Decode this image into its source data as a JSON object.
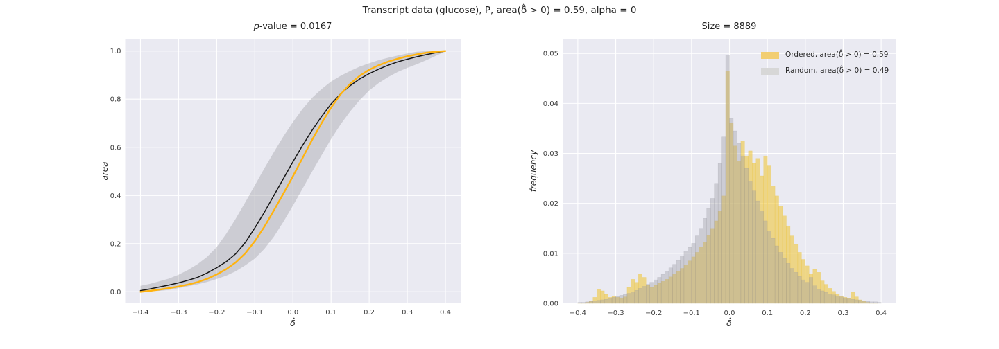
{
  "figure": {
    "suptitle": "Transcript data (glucose), P, area(δ̂ > 0) = 0.59, alpha = 0",
    "background": "#ffffff",
    "axes_bg": "#eaeaf2",
    "grid_color": "#ffffff",
    "tick_color": "#3d3d3d",
    "text_color": "#262626"
  },
  "chart_data": [
    {
      "type": "line",
      "title": "p-value = 0.0167",
      "title_parts": {
        "italic": "p",
        "rest": "-value = 0.0167"
      },
      "xlabel": "δ̂",
      "ylabel": "area",
      "xlim": [
        -0.44,
        0.44
      ],
      "ylim": [
        -0.045,
        1.048
      ],
      "grid": true,
      "xticks": {
        "values": [
          -0.4,
          -0.3,
          -0.2,
          -0.1,
          0,
          0.1,
          0.2,
          0.3,
          0.4
        ],
        "labels": [
          "−0.4",
          "−0.3",
          "−0.2",
          "−0.1",
          "0.0",
          "0.1",
          "0.2",
          "0.3",
          "0.4"
        ]
      },
      "yticks": {
        "values": [
          0,
          0.2,
          0.4,
          0.6,
          0.8,
          1
        ],
        "labels": [
          "0.0",
          "0.2",
          "0.4",
          "0.6",
          "0.8",
          "1.0"
        ]
      },
      "x": [
        -0.4,
        -0.375,
        -0.35,
        -0.325,
        -0.3,
        -0.275,
        -0.25,
        -0.225,
        -0.2,
        -0.175,
        -0.15,
        -0.125,
        -0.1,
        -0.075,
        -0.05,
        -0.025,
        0,
        0.025,
        0.05,
        0.075,
        0.1,
        0.125,
        0.15,
        0.175,
        0.2,
        0.225,
        0.25,
        0.275,
        0.3,
        0.325,
        0.35,
        0.375,
        0.4
      ],
      "band": {
        "color": "#96969b",
        "opacity": 0.35,
        "upper": [
          0.025,
          0.033,
          0.044,
          0.055,
          0.071,
          0.091,
          0.115,
          0.145,
          0.186,
          0.241,
          0.304,
          0.372,
          0.442,
          0.512,
          0.58,
          0.645,
          0.705,
          0.759,
          0.805,
          0.842,
          0.873,
          0.897,
          0.917,
          0.935,
          0.949,
          0.962,
          0.972,
          0.981,
          0.99,
          0.997,
          1.0,
          1.0,
          1.0
        ],
        "lower": [
          0.001,
          0.002,
          0.004,
          0.008,
          0.015,
          0.023,
          0.031,
          0.041,
          0.053,
          0.067,
          0.085,
          0.11,
          0.138,
          0.178,
          0.229,
          0.291,
          0.358,
          0.428,
          0.498,
          0.567,
          0.634,
          0.695,
          0.749,
          0.796,
          0.836,
          0.867,
          0.892,
          0.913,
          0.93,
          0.945,
          0.962,
          0.98,
          0.998
        ]
      },
      "series": [
        {
          "id": "random_mean",
          "color": "#151515",
          "linewidth": 1.5,
          "y": [
            0.005,
            0.012,
            0.02,
            0.028,
            0.037,
            0.048,
            0.06,
            0.078,
            0.1,
            0.125,
            0.158,
            0.205,
            0.265,
            0.33,
            0.4,
            0.47,
            0.54,
            0.607,
            0.67,
            0.728,
            0.78,
            0.822,
            0.856,
            0.884,
            0.906,
            0.925,
            0.941,
            0.955,
            0.966,
            0.976,
            0.985,
            0.993,
            1.0
          ]
        },
        {
          "id": "ordered",
          "color": "#ffb30f",
          "linewidth": 2.4,
          "y": [
            0.0,
            0.004,
            0.009,
            0.015,
            0.022,
            0.03,
            0.04,
            0.054,
            0.072,
            0.094,
            0.122,
            0.16,
            0.21,
            0.27,
            0.338,
            0.408,
            0.48,
            0.555,
            0.63,
            0.7,
            0.765,
            0.82,
            0.864,
            0.897,
            0.922,
            0.941,
            0.956,
            0.968,
            0.978,
            0.986,
            0.993,
            0.997,
            1.0
          ]
        }
      ]
    },
    {
      "type": "bar",
      "title": "Size = 8889",
      "xlabel": "δ̂",
      "ylabel": "frequency",
      "xlim": [
        -0.44,
        0.44
      ],
      "ylim": [
        0,
        0.0528
      ],
      "grid": true,
      "xticks": {
        "values": [
          -0.4,
          -0.3,
          -0.2,
          -0.1,
          0,
          0.1,
          0.2,
          0.3,
          0.4
        ],
        "labels": [
          "−0.4",
          "−0.3",
          "−0.2",
          "−0.1",
          "0.0",
          "0.1",
          "0.2",
          "0.3",
          "0.4"
        ]
      },
      "yticks": {
        "values": [
          0,
          0.01,
          0.02,
          0.03,
          0.04,
          0.05
        ],
        "labels": [
          "0.00",
          "0.01",
          "0.02",
          "0.03",
          "0.04",
          "0.05"
        ]
      },
      "bin_start": -0.4,
      "bin_width": 0.01,
      "n_bins": 80,
      "legend_position": "upper right",
      "series": [
        {
          "name": "Ordered, area(δ̂ > 0) = 0.59",
          "color": "#eec22d",
          "opacity": 0.55,
          "swatch": "#f2ce72",
          "values": [
            0.0001,
            0.0001,
            0.0002,
            0.0005,
            0.0012,
            0.0028,
            0.0025,
            0.0018,
            0.0012,
            0.0015,
            0.0012,
            0.001,
            0.0013,
            0.0032,
            0.0048,
            0.0042,
            0.0058,
            0.0052,
            0.0036,
            0.0032,
            0.0036,
            0.004,
            0.0044,
            0.0048,
            0.0053,
            0.0058,
            0.0064,
            0.007,
            0.0077,
            0.0085,
            0.0093,
            0.0102,
            0.0112,
            0.0123,
            0.0136,
            0.015,
            0.0165,
            0.0185,
            0.0215,
            0.0465,
            0.036,
            0.0315,
            0.0285,
            0.0325,
            0.0295,
            0.0305,
            0.028,
            0.029,
            0.0255,
            0.0295,
            0.0275,
            0.0235,
            0.0215,
            0.0195,
            0.0175,
            0.0155,
            0.0135,
            0.0118,
            0.0102,
            0.0088,
            0.0075,
            0.0058,
            0.0068,
            0.0062,
            0.0045,
            0.0038,
            0.003,
            0.0024,
            0.0019,
            0.0015,
            0.0012,
            0.001,
            0.0022,
            0.0013,
            0.0007,
            0.0004,
            0.0002,
            0.0001,
            0.0001,
            0.0
          ]
        },
        {
          "name": "Random, area(δ̂ > 0) = 0.49",
          "color": "#9a9aa2",
          "opacity": 0.38,
          "swatch": "#d7d7d7",
          "values": [
            0.0002,
            0.0002,
            0.0003,
            0.0004,
            0.0005,
            0.0006,
            0.0007,
            0.0008,
            0.001,
            0.0012,
            0.0014,
            0.0016,
            0.0018,
            0.002,
            0.0023,
            0.0026,
            0.003,
            0.0034,
            0.0038,
            0.0042,
            0.0047,
            0.0052,
            0.0058,
            0.0064,
            0.0071,
            0.0078,
            0.0086,
            0.0095,
            0.0105,
            0.0112,
            0.012,
            0.0135,
            0.015,
            0.017,
            0.019,
            0.021,
            0.024,
            0.028,
            0.0333,
            0.0497,
            0.037,
            0.0345,
            0.032,
            0.0295,
            0.027,
            0.0245,
            0.0225,
            0.0205,
            0.0185,
            0.0165,
            0.0145,
            0.013,
            0.0115,
            0.0102,
            0.009,
            0.008,
            0.007,
            0.0062,
            0.0054,
            0.0047,
            0.0042,
            0.0052,
            0.0035,
            0.0028,
            0.0025,
            0.0022,
            0.0019,
            0.0017,
            0.0015,
            0.0013,
            0.0011,
            0.0009,
            0.0008,
            0.0007,
            0.0006,
            0.0005,
            0.0004,
            0.0003,
            0.0003,
            0.0002
          ]
        }
      ]
    }
  ]
}
